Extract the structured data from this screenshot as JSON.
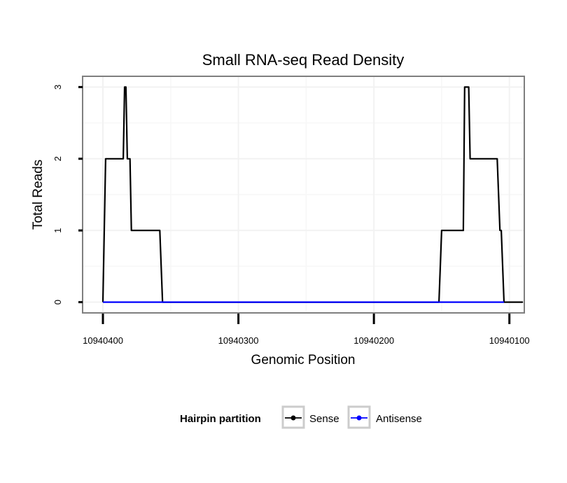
{
  "chart_data": {
    "type": "line",
    "title": "Small RNA-seq Read Density",
    "xlabel": "Genomic Position",
    "ylabel": "Total Reads",
    "x_reversed": true,
    "xlim": [
      10940415,
      10940089
    ],
    "ylim": [
      -0.15,
      3.15
    ],
    "x_ticks": [
      10940400,
      10940300,
      10940200,
      10940100
    ],
    "x_tick_labels": [
      "10940400",
      "10940300",
      "10940200",
      "10940100"
    ],
    "y_ticks": [
      0,
      1,
      2,
      3
    ],
    "y_tick_labels": [
      "0",
      "1",
      "2",
      "3"
    ],
    "grid": true,
    "legend": {
      "title": "Hairpin partition",
      "placement": "bottom",
      "entries": [
        "Sense",
        "Antisense"
      ]
    },
    "series": [
      {
        "name": "Sense",
        "color": "#000000",
        "x": [
          10940400,
          10940398,
          10940385,
          10940384,
          10940383,
          10940382,
          10940380,
          10940379,
          10940377,
          10940358,
          10940356,
          10940152,
          10940150,
          10940134,
          10940133,
          10940132,
          10940130,
          10940129,
          10940122,
          10940109,
          10940107,
          10940106,
          10940104,
          10940090
        ],
        "y": [
          0,
          2,
          2,
          3,
          3,
          2,
          2,
          1,
          1,
          1,
          0,
          0,
          1,
          1,
          3,
          3,
          3,
          2,
          2,
          2,
          1,
          1,
          0,
          0
        ]
      },
      {
        "name": "Antisense",
        "color": "#0000ff",
        "x": [
          10940400,
          10940356,
          10940152,
          10940104
        ],
        "y": [
          0,
          0,
          0,
          0
        ]
      }
    ]
  }
}
